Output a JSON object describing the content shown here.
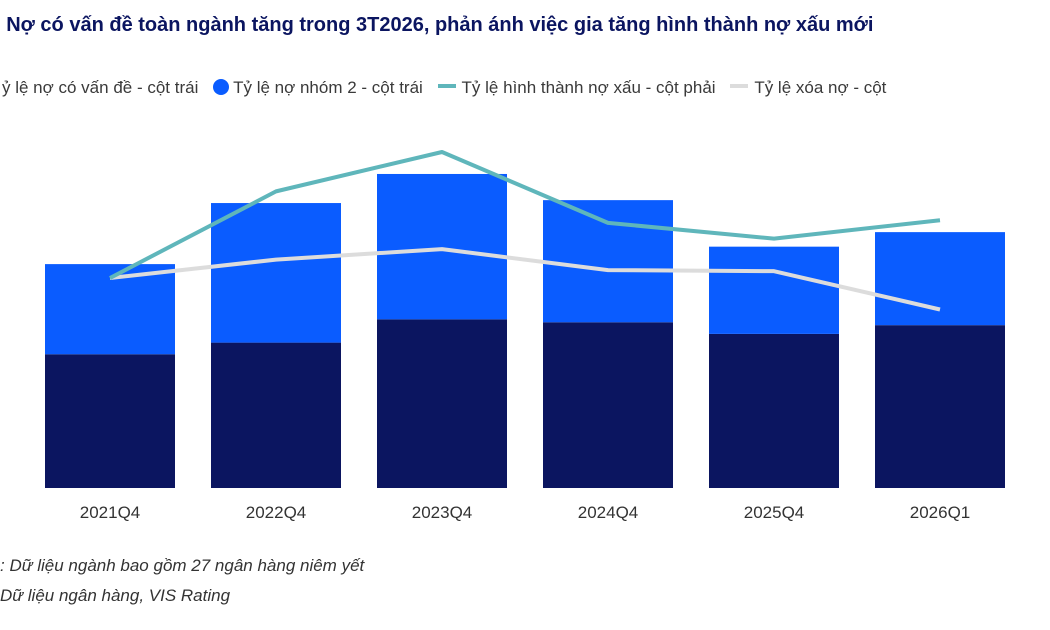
{
  "title": ": Nợ có vấn đề toàn ngành tăng trong 3T2026, phản ánh việc gia tăng hình thành nợ xấu mới",
  "legend": [
    {
      "label": "ỷ lệ nợ có vấn đề - cột trái",
      "kind": "dot",
      "color": "#0b1560"
    },
    {
      "label": "Tỷ lệ nợ nhóm 2 - cột trái",
      "kind": "dot",
      "color": "#0a5cff"
    },
    {
      "label": "Tỷ lệ hình thành nợ xấu - cột phải",
      "kind": "dash",
      "color": "#5fb6bb"
    },
    {
      "label": "Tỷ lệ xóa nợ - cột",
      "kind": "dash",
      "color": "#dcdcdc"
    }
  ],
  "chart_data": {
    "type": "bar",
    "stacked": true,
    "categories": [
      "2021Q4",
      "2022Q4",
      "2023Q4",
      "2024Q4",
      "2025Q4",
      "2026Q1"
    ],
    "series": [
      {
        "name": "ỷ lệ nợ có vấn đề - cột trái",
        "color": "#0b1560",
        "axis": "left",
        "values": [
          2.3,
          2.5,
          2.9,
          2.85,
          2.65,
          2.8
        ]
      },
      {
        "name": "Tỷ lệ nợ nhóm 2 - cột trái",
        "color": "#0a5cff",
        "axis": "left",
        "values": [
          1.55,
          2.4,
          2.5,
          2.1,
          1.5,
          1.6
        ]
      },
      {
        "name": "Tỷ lệ hình thành nợ xấu - cột phải",
        "type": "line",
        "color": "#5fb6bb",
        "axis": "right",
        "values": [
          1.0,
          2.65,
          3.4,
          2.05,
          1.75,
          2.1
        ]
      },
      {
        "name": "Tỷ lệ xóa nợ - cột",
        "type": "line",
        "color": "#dcdcdc",
        "axis": "right",
        "values": [
          1.0,
          1.35,
          1.55,
          1.15,
          1.13,
          0.4
        ]
      }
    ],
    "ylim_left": [
      0,
      6.5
    ],
    "ylim_right": [
      -3,
      4.2
    ],
    "grid": false,
    "legend_position": "top"
  },
  "footnotes": [
    ": Dữ liệu ngành bao gồm 27 ngân hàng niêm yết",
    " Dữ liệu ngân hàng, VIS Rating"
  ]
}
